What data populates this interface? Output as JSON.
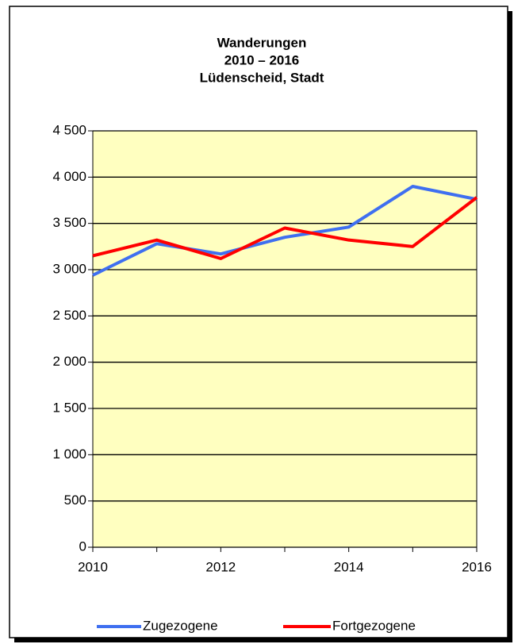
{
  "chart_data": {
    "type": "line",
    "title": [
      "Wanderungen",
      "2010 – 2016",
      "Lüdenscheid, Stadt"
    ],
    "x": [
      2010,
      2011,
      2012,
      2013,
      2014,
      2015,
      2016
    ],
    "series": [
      {
        "name": "Zugezogene",
        "color": "#3f6ff0",
        "values": [
          2940,
          3280,
          3170,
          3350,
          3460,
          3900,
          3760
        ]
      },
      {
        "name": "Fortgezogene",
        "color": "#ff0000",
        "values": [
          3150,
          3320,
          3120,
          3450,
          3320,
          3250,
          3780
        ]
      }
    ],
    "xlim": [
      2010,
      2016
    ],
    "xticks": [
      2010,
      2012,
      2014,
      2016
    ],
    "ylim": [
      0,
      4500
    ],
    "yticks": [
      0,
      500,
      {
        "value": 1000,
        "label": "1 000"
      },
      {
        "value": 1500,
        "label": "1 500"
      },
      {
        "value": 2000,
        "label": "2 000"
      },
      {
        "value": 2500,
        "label": "2 500"
      },
      {
        "value": 3000,
        "label": "3 000"
      },
      {
        "value": 3500,
        "label": "3 500"
      },
      {
        "value": 4000,
        "label": "4 000"
      },
      {
        "value": 4500,
        "label": "4 500"
      }
    ],
    "grid": true,
    "plot_background": "#ffffc0",
    "legend": "bottom"
  }
}
